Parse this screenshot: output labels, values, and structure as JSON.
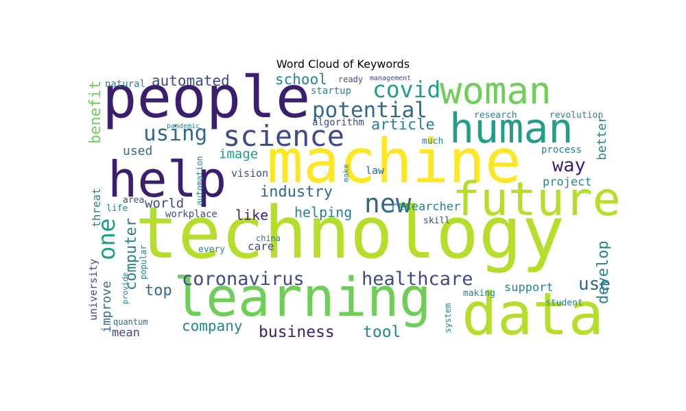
{
  "title": "Word Cloud of Keywords",
  "palette": {
    "dark_purple": "#440154",
    "indigo": "#3b1f6e",
    "blue": "#3e4a89",
    "teal_blue": "#31688e",
    "teal": "#26828e",
    "green_teal": "#1f9e89",
    "green": "#35b779",
    "light_green": "#6ece58",
    "lime": "#b5de2b",
    "yellow": "#fde725"
  },
  "words": [
    {
      "text": "technology",
      "color": "lime"
    },
    {
      "text": "machine",
      "color": "yellow"
    },
    {
      "text": "people",
      "color": "indigo"
    },
    {
      "text": "learning",
      "color": "light_green"
    },
    {
      "text": "data",
      "color": "lime"
    },
    {
      "text": "human",
      "color": "green_teal"
    },
    {
      "text": "woman",
      "color": "light_green"
    },
    {
      "text": "help",
      "color": "indigo"
    },
    {
      "text": "future",
      "color": "lime"
    },
    {
      "text": "science",
      "color": "blue"
    },
    {
      "text": "new",
      "color": "teal_blue"
    },
    {
      "text": "coronavirus",
      "color": "blue"
    },
    {
      "text": "healthcare",
      "color": "blue"
    },
    {
      "text": "potential",
      "color": "teal_blue"
    },
    {
      "text": "covid",
      "color": "green_teal"
    },
    {
      "text": "using",
      "color": "teal_blue"
    },
    {
      "text": "one",
      "color": "green_teal"
    },
    {
      "text": "industry",
      "color": "teal_blue"
    },
    {
      "text": "article",
      "color": "teal"
    },
    {
      "text": "automated",
      "color": "blue"
    },
    {
      "text": "school",
      "color": "teal"
    },
    {
      "text": "way",
      "color": "indigo"
    },
    {
      "text": "company",
      "color": "teal"
    },
    {
      "text": "business",
      "color": "indigo"
    },
    {
      "text": "tool",
      "color": "teal"
    },
    {
      "text": "use",
      "color": "teal_blue"
    },
    {
      "text": "develop",
      "color": "teal"
    },
    {
      "text": "support",
      "color": "teal"
    },
    {
      "text": "top",
      "color": "teal_blue"
    },
    {
      "text": "computer",
      "color": "teal"
    },
    {
      "text": "improve",
      "color": "teal_blue"
    },
    {
      "text": "world",
      "color": "blue"
    },
    {
      "text": "like",
      "color": "indigo"
    },
    {
      "text": "helping",
      "color": "teal"
    },
    {
      "text": "researcher",
      "color": "teal"
    },
    {
      "text": "project",
      "color": "teal"
    },
    {
      "text": "image",
      "color": "green_teal"
    },
    {
      "text": "benefit",
      "color": "light_green"
    },
    {
      "text": "better",
      "color": "teal"
    },
    {
      "text": "startup",
      "color": "teal"
    },
    {
      "text": "algorithm",
      "color": "blue"
    },
    {
      "text": "used",
      "color": "teal_blue"
    },
    {
      "text": "mean",
      "color": "blue"
    },
    {
      "text": "university",
      "color": "blue"
    },
    {
      "text": "threat",
      "color": "teal"
    },
    {
      "text": "natural",
      "color": "teal"
    },
    {
      "text": "vision",
      "color": "blue"
    },
    {
      "text": "law",
      "color": "teal_blue"
    },
    {
      "text": "care",
      "color": "blue"
    },
    {
      "text": "china",
      "color": "teal"
    },
    {
      "text": "workplace",
      "color": "blue"
    },
    {
      "text": "process",
      "color": "teal"
    },
    {
      "text": "revolution",
      "color": "teal"
    },
    {
      "text": "research",
      "color": "teal"
    },
    {
      "text": "much",
      "color": "teal"
    },
    {
      "text": "skill",
      "color": "blue"
    },
    {
      "text": "making",
      "color": "teal"
    },
    {
      "text": "student",
      "color": "teal"
    },
    {
      "text": "every",
      "color": "teal"
    },
    {
      "text": "area",
      "color": "blue"
    },
    {
      "text": "life",
      "color": "teal"
    },
    {
      "text": "automation",
      "color": "teal"
    },
    {
      "text": "quantum",
      "color": "teal_blue"
    },
    {
      "text": "system",
      "color": "teal"
    },
    {
      "text": "ready",
      "color": "blue"
    },
    {
      "text": "management",
      "color": "blue"
    },
    {
      "text": "popular",
      "color": "teal"
    },
    {
      "text": "provide",
      "color": "teal"
    },
    {
      "text": "make",
      "color": "teal"
    },
    {
      "text": "pandemic",
      "color": "teal"
    }
  ]
}
